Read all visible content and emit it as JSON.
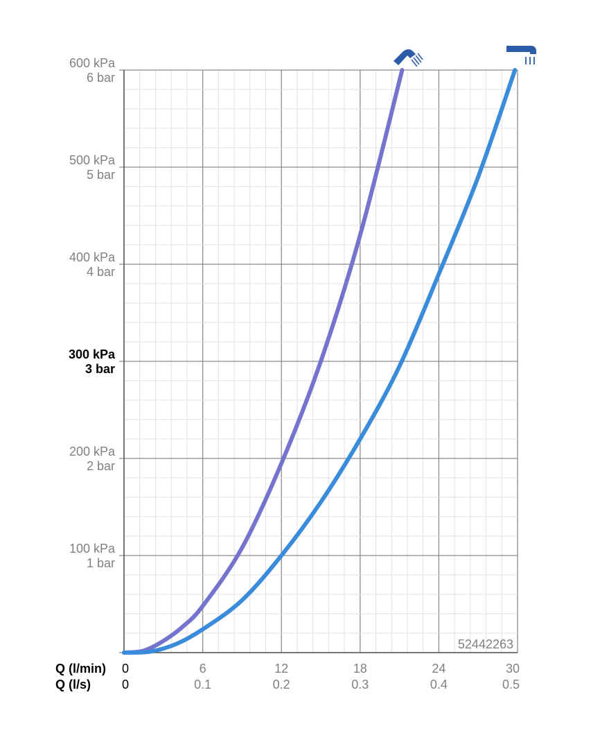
{
  "chart_data": {
    "type": "line",
    "xlabel": "Q (l/min)",
    "xlabel2": "Q (l/s)",
    "x_ticks": [
      "0",
      "6",
      "12",
      "18",
      "24",
      "30"
    ],
    "x2_ticks": [
      "0",
      "0.1",
      "0.2",
      "0.3",
      "0.4",
      "0.5"
    ],
    "xlim": [
      0,
      30
    ],
    "ylim": [
      0,
      600
    ],
    "y_ticks": [
      {
        "value": 100,
        "kpa": "100 kPa",
        "bar": "1 bar",
        "bold": false
      },
      {
        "value": 200,
        "kpa": "200 kPa",
        "bar": "2 bar",
        "bold": false
      },
      {
        "value": 300,
        "kpa": "300 kPa",
        "bar": "3 bar",
        "bold": true
      },
      {
        "value": 400,
        "kpa": "400 kPa",
        "bar": "4 bar",
        "bold": false
      },
      {
        "value": 500,
        "kpa": "500 kPa",
        "bar": "5 bar",
        "bold": false
      },
      {
        "value": 600,
        "kpa": "600 kPa",
        "bar": "6 bar",
        "bold": false
      }
    ],
    "grid": true,
    "annotation": "52442263",
    "series": [
      {
        "icon": "hand-shower-icon",
        "color": "#7474cf",
        "x": [
          0,
          1.5,
          3,
          4.5,
          6,
          9,
          12,
          15,
          18,
          21.2
        ],
        "y": [
          0,
          2,
          12,
          27,
          48,
          108,
          195,
          300,
          430,
          600
        ]
      },
      {
        "icon": "overhead-shower-icon",
        "color": "#3a8cdb",
        "x": [
          0,
          2,
          4,
          6,
          9,
          12,
          15,
          18,
          21,
          24,
          27,
          29.8
        ],
        "y": [
          0,
          1,
          9,
          24,
          54,
          100,
          155,
          220,
          295,
          390,
          490,
          600
        ]
      }
    ],
    "icon_color": "#2c5ba8"
  }
}
